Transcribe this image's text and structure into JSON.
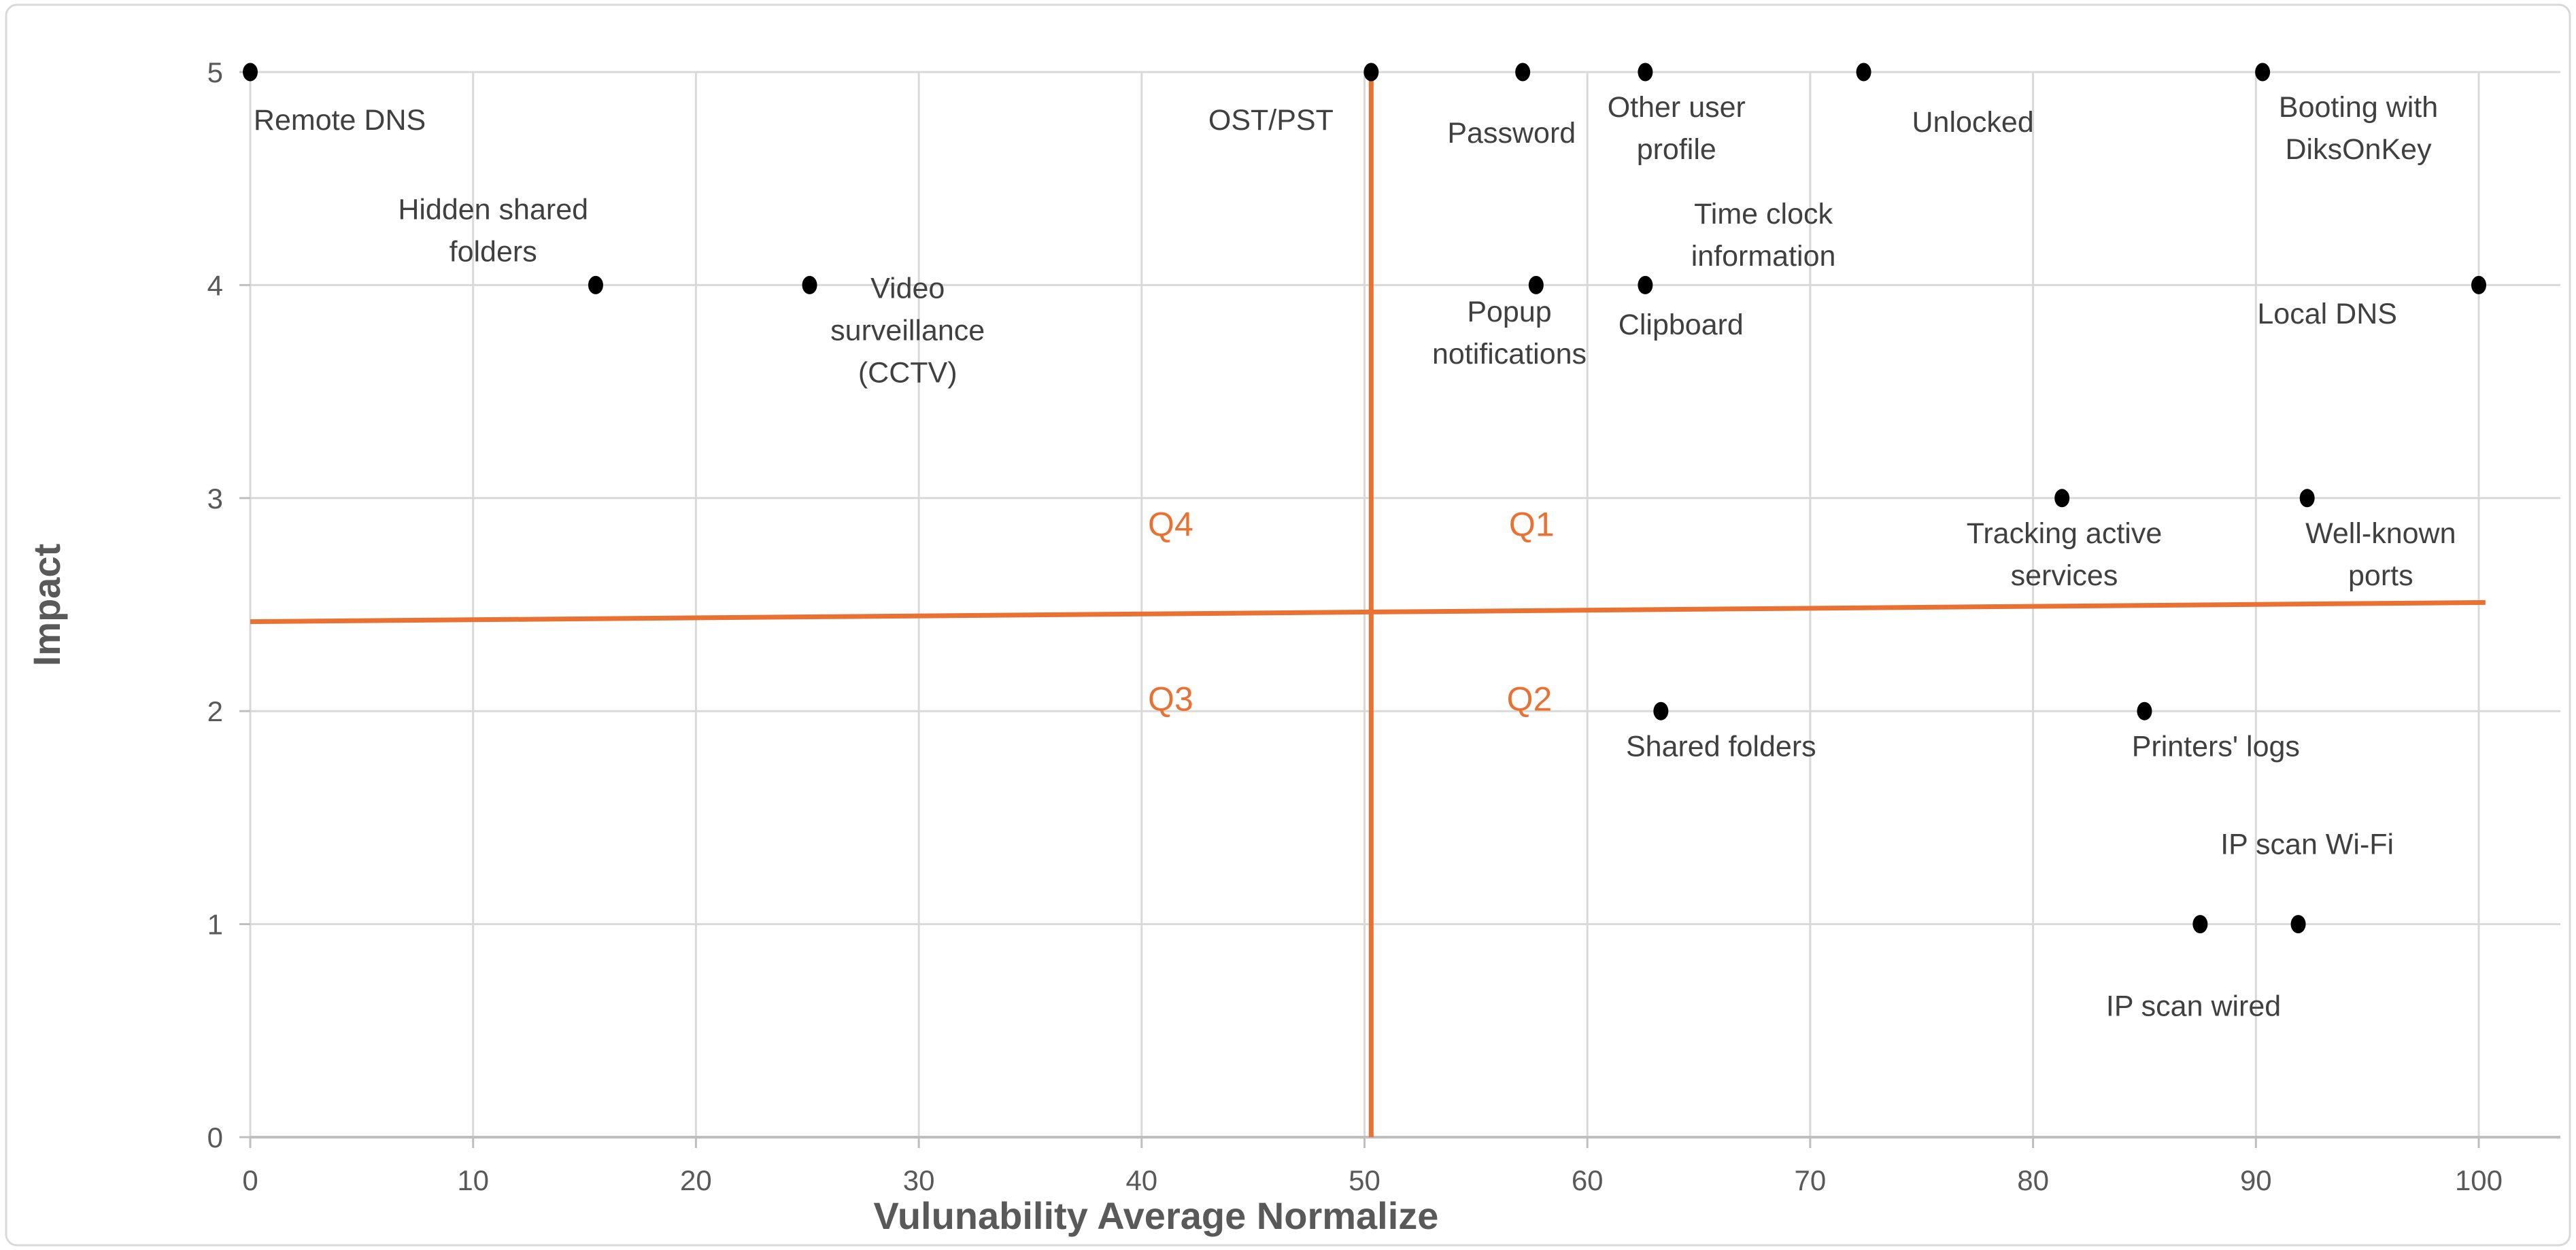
{
  "chart_data": {
    "type": "scatter",
    "title": "",
    "xlabel": "Vulunability Average Normalize",
    "ylabel": "Impact",
    "xlim": [
      0,
      100
    ],
    "ylim": [
      0,
      5
    ],
    "grid": true,
    "legend": "none",
    "x_ticks": [
      "0",
      "10",
      "20",
      "30",
      "40",
      "50",
      "60",
      "70",
      "80",
      "90",
      "100"
    ],
    "y_ticks": [
      "0",
      "1",
      "2",
      "3",
      "4",
      "5"
    ],
    "colors": {
      "marker": "#000000",
      "accent": "#E97132",
      "gridline": "#D9D9D9",
      "axis_line": "#BFBFBF",
      "tick_text": "#595959",
      "label_text": "#404040",
      "axis_title_text": "#595959",
      "frame_border": "#D9D9D9",
      "background": "#FFFFFF"
    },
    "points": [
      {
        "name": "Remote DNS",
        "x": 0,
        "y": 5,
        "label_lines": [
          "Remote DNS"
        ],
        "label_x": 0.15,
        "label_y": 4.78,
        "label_anchor": "start"
      },
      {
        "name": "Hidden shared folders",
        "x": 15.5,
        "y": 4,
        "label_lines": [
          "Hidden shared",
          "folders"
        ],
        "label_x": 10.9,
        "label_y": 4.36,
        "label_anchor": "middle"
      },
      {
        "name": "Video surveillance (CCTV)",
        "x": 25.1,
        "y": 4,
        "label_lines": [
          "Video",
          "surveillance",
          "(CCTV)"
        ],
        "label_x": 29.5,
        "label_y": 3.99,
        "label_anchor": "middle"
      },
      {
        "name": "OST/PST",
        "x": 50.3,
        "y": 5,
        "label_lines": [
          "OST/PST"
        ],
        "label_x": 45.8,
        "label_y": 4.78,
        "label_anchor": "middle"
      },
      {
        "name": "Password",
        "x": 57.1,
        "y": 5,
        "label_lines": [
          "Password"
        ],
        "label_x": 56.6,
        "label_y": 4.72,
        "label_anchor": "middle"
      },
      {
        "name": "Other user profile",
        "x": 62.6,
        "y": 5,
        "label_lines": [
          "Other user",
          "profile"
        ],
        "label_x": 64.0,
        "label_y": 4.84,
        "label_anchor": "middle"
      },
      {
        "name": "Unlocked",
        "x": 72.4,
        "y": 5,
        "label_lines": [
          "Unlocked"
        ],
        "label_x": 77.3,
        "label_y": 4.77,
        "label_anchor": "middle"
      },
      {
        "name": "Booting with DiksOnKey",
        "x": 90.3,
        "y": 5,
        "label_lines": [
          "Booting with",
          "DiksOnKey"
        ],
        "label_x": 94.6,
        "label_y": 4.84,
        "label_anchor": "middle"
      },
      {
        "name": "Popup notifications",
        "x": 57.7,
        "y": 4,
        "label_lines": [
          "Popup",
          "notifications"
        ],
        "label_x": 56.5,
        "label_y": 3.88,
        "label_anchor": "middle"
      },
      {
        "name": "Clipboard",
        "x": 62.6,
        "y": 4,
        "label_lines": [
          "Clipboard"
        ],
        "label_x": 64.2,
        "label_y": 3.82,
        "label_anchor": "middle"
      },
      {
        "name": "Local DNS",
        "x": 100,
        "y": 4,
        "label_lines": [
          "Local DNS"
        ],
        "label_x": 93.2,
        "label_y": 3.87,
        "label_anchor": "middle"
      },
      {
        "name": "Tracking active services",
        "x": 81.3,
        "y": 3,
        "label_lines": [
          "Tracking active",
          "services"
        ],
        "label_x": 81.4,
        "label_y": 2.84,
        "label_anchor": "middle"
      },
      {
        "name": "Well-known ports",
        "x": 92.3,
        "y": 3,
        "label_lines": [
          "Well-known",
          "ports"
        ],
        "label_x": 95.6,
        "label_y": 2.84,
        "label_anchor": "middle"
      },
      {
        "name": "Shared folders",
        "x": 63.3,
        "y": 2,
        "label_lines": [
          "Shared folders"
        ],
        "label_x": 66.0,
        "label_y": 1.84,
        "label_anchor": "middle"
      },
      {
        "name": "Printers' logs",
        "x": 85,
        "y": 2,
        "label_lines": [
          "Printers' logs"
        ],
        "label_x": 88.2,
        "label_y": 1.84,
        "label_anchor": "middle"
      },
      {
        "name": "IP scan wired",
        "x": 87.5,
        "y": 1,
        "label_lines": [
          "IP scan wired"
        ],
        "label_x": 87.2,
        "label_y": 0.62,
        "label_anchor": "middle"
      },
      {
        "name": "IP scan Wi-Fi",
        "x": 91.9,
        "y": 1,
        "label_lines": [
          "IP scan Wi-Fi"
        ],
        "label_x": 92.3,
        "label_y": 1.38,
        "label_anchor": "middle"
      }
    ],
    "unmarked_labels": [
      {
        "name": "Time clock information",
        "label_lines": [
          "Time clock",
          "information"
        ],
        "label_x": 67.9,
        "label_y": 4.34,
        "label_anchor": "middle"
      }
    ],
    "quadrant_labels": [
      {
        "text": "Q1",
        "x": 57.5,
        "y": 2.88
      },
      {
        "text": "Q2",
        "x": 57.4,
        "y": 2.06
      },
      {
        "text": "Q3",
        "x": 41.3,
        "y": 2.06
      },
      {
        "text": "Q4",
        "x": 41.3,
        "y": 2.88
      }
    ],
    "quadrant_lines": {
      "vertical": {
        "x": 50.3,
        "y_top": 5,
        "y_bottom": 0
      },
      "horizontal": {
        "x_left": 0,
        "y_left": 2.42,
        "x_right": 100.3,
        "y_right": 2.51
      }
    }
  }
}
